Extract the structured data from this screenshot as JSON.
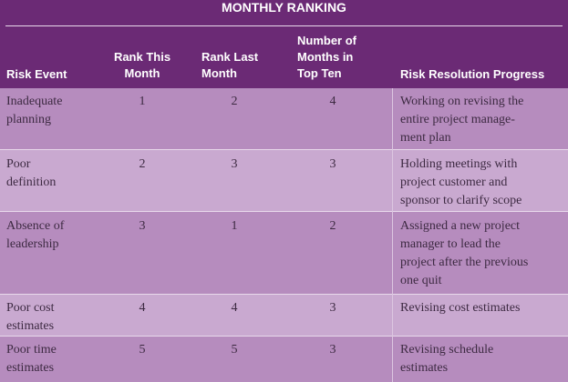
{
  "header": {
    "banner": "MONTHLY RANKING",
    "col_risk_event": "Risk Event",
    "col_rank_this": [
      "Rank This",
      "Month"
    ],
    "col_rank_last": [
      "Rank Last",
      "Month"
    ],
    "col_months_top": [
      "Number of",
      "Months in",
      "Top Ten"
    ],
    "col_progress": "Risk Resolution Progress"
  },
  "rows": [
    {
      "event": [
        "Inadequate",
        "planning"
      ],
      "rank_this": "1",
      "rank_last": "2",
      "months": "4",
      "progress": [
        "Working on revising the",
        "entire project manage-",
        "ment plan"
      ]
    },
    {
      "event": [
        "Poor",
        "definition"
      ],
      "rank_this": "2",
      "rank_last": "3",
      "months": "3",
      "progress": [
        "Holding meetings with",
        "project customer and",
        "sponsor to clarify scope"
      ]
    },
    {
      "event": [
        "Absence of",
        "leadership"
      ],
      "rank_this": "3",
      "rank_last": "1",
      "months": "2",
      "progress": [
        "Assigned a new project",
        "manager to lead the",
        "project after the previous",
        "one quit"
      ]
    },
    {
      "event": [
        "Poor cost",
        "estimates"
      ],
      "rank_this": "4",
      "rank_last": "4",
      "months": "3",
      "progress": [
        "Revising cost estimates"
      ]
    },
    {
      "event": [
        "Poor time",
        "estimates"
      ],
      "rank_this": "5",
      "rank_last": "5",
      "months": "3",
      "progress": [
        "Revising schedule",
        "estimates"
      ]
    }
  ]
}
